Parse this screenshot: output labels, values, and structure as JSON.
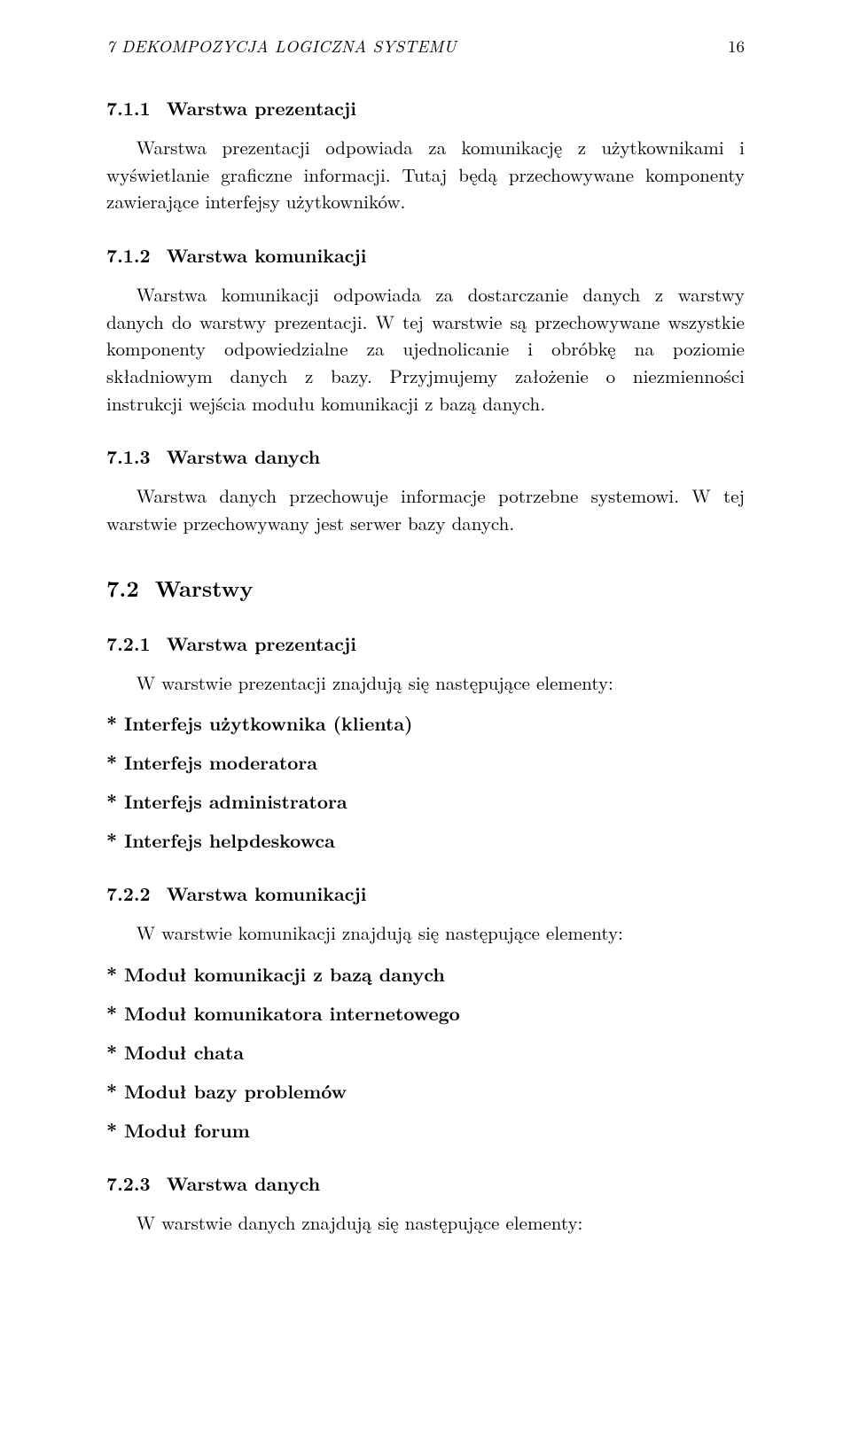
{
  "header": {
    "running_title": "7  DEKOMPOZYCJA LOGICZNA SYSTEMU",
    "page_number": "16"
  },
  "sections": {
    "s711": {
      "num": "7.1.1",
      "title": "Warstwa prezentacji",
      "body": "Warstwa prezentacji odpowiada za komunikację z użytkownikami i wyświetlanie graficzne informacji. Tutaj będą przechowywane komponenty zawierające interfejsy użytkowników."
    },
    "s712": {
      "num": "7.1.2",
      "title": "Warstwa komunikacji",
      "body": "Warstwa komunikacji odpowiada za dostarczanie danych z warstwy danych do warstwy prezentacji. W tej warstwie są przechowywane wszystkie komponenty odpowiedzialne za ujednolicanie i obróbkę na poziomie składniowym danych z bazy. Przyjmujemy założenie o niezmienności instrukcji wejścia modułu komunikacji z bazą danych."
    },
    "s713": {
      "num": "7.1.3",
      "title": "Warstwa danych",
      "body": "Warstwa danych przechowuje informacje potrzebne systemowi. W tej warstwie przechowywany jest serwer bazy danych."
    },
    "s72": {
      "num": "7.2",
      "title": "Warstwy"
    },
    "s721": {
      "num": "7.2.1",
      "title": "Warstwa prezentacji",
      "intro": "W warstwie prezentacji znajdują się następujące elementy:",
      "items": [
        "* Interfejs użytkownika (klienta)",
        "* Interfejs moderatora",
        "* Interfejs administratora",
        "* Interfejs helpdeskowca"
      ]
    },
    "s722": {
      "num": "7.2.2",
      "title": "Warstwa komunikacji",
      "intro": "W warstwie komunikacji znajdują się następujące elementy:",
      "items": [
        "* Moduł komunikacji z bazą danych",
        "* Moduł komunikatora internetowego",
        "* Moduł chata",
        "* Moduł bazy problemów",
        "* Moduł forum"
      ]
    },
    "s723": {
      "num": "7.2.3",
      "title": "Warstwa danych",
      "intro": "W warstwie danych znajdują się następujące elementy:"
    }
  }
}
